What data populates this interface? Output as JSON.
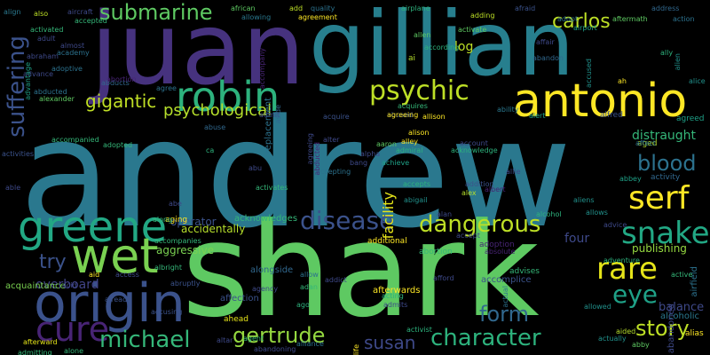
{
  "words": [
    {
      "text": "andrew",
      "color": "#2a788e"
    },
    {
      "text": "shark",
      "color": "#5ec962"
    },
    {
      "text": "juan",
      "color": "#46327e"
    },
    {
      "text": "gillian",
      "color": "#277f8e"
    },
    {
      "text": "antonio",
      "color": "#fde725"
    },
    {
      "text": "origin",
      "color": "#3b528b"
    },
    {
      "text": "greene",
      "color": "#22a884"
    },
    {
      "text": "robin",
      "color": "#2db27d"
    },
    {
      "text": "wet",
      "color": "#7ad151"
    },
    {
      "text": "psychic",
      "color": "#bddf26"
    },
    {
      "text": "submarine",
      "color": "#5ec962"
    },
    {
      "text": "suffering",
      "color": "#3b528b"
    },
    {
      "text": "disease",
      "color": "#3b528b"
    },
    {
      "text": "dangerous",
      "color": "#bddf26"
    },
    {
      "text": "serf",
      "color": "#fde725"
    },
    {
      "text": "snake",
      "color": "#22a884"
    },
    {
      "text": "blood",
      "color": "#2c728e"
    },
    {
      "text": "rare",
      "color": "#e5e419"
    },
    {
      "text": "eye",
      "color": "#1fa187"
    },
    {
      "text": "story",
      "color": "#bddf26"
    },
    {
      "text": "character",
      "color": "#2db27d"
    },
    {
      "text": "cure",
      "color": "#482475"
    },
    {
      "text": "michael",
      "color": "#35b779"
    },
    {
      "text": "gertrude",
      "color": "#95d840"
    },
    {
      "text": "form",
      "color": "#31688e"
    },
    {
      "text": "susan",
      "color": "#3e4989"
    },
    {
      "text": "try",
      "color": "#3b528b"
    },
    {
      "text": "carlos",
      "color": "#bddf26"
    },
    {
      "text": "gigantic",
      "color": "#c0df25"
    },
    {
      "text": "psychological",
      "color": "#b5de2b"
    },
    {
      "text": "distraught",
      "color": "#35b779"
    },
    {
      "text": "publishing",
      "color": "#95d840"
    },
    {
      "text": "four",
      "color": "#3e4989"
    },
    {
      "text": "overboard",
      "color": "#414487"
    },
    {
      "text": "balance",
      "color": "#3e4989"
    },
    {
      "text": "accidentally",
      "color": "#b5de2b"
    },
    {
      "text": "aggressive",
      "color": "#7ad151"
    },
    {
      "text": "operator",
      "color": "#3b528b"
    },
    {
      "text": "facility",
      "color": "#e5e419"
    },
    {
      "text": "alcoholic",
      "color": "#2a788e"
    },
    {
      "text": "replacement",
      "color": "#2c728e"
    },
    {
      "text": "abandoned",
      "color": "#3e4989"
    },
    {
      "text": "acknowledges",
      "color": "#35b779"
    },
    {
      "text": "affection",
      "color": "#3b528b"
    },
    {
      "text": "advises",
      "color": "#35b779"
    },
    {
      "text": "afterwards",
      "color": "#fde725"
    },
    {
      "text": "accomplice",
      "color": "#3b528b"
    },
    {
      "text": "alongside",
      "color": "#31688e"
    },
    {
      "text": "accompanies",
      "color": "#35b779"
    },
    {
      "text": "albright",
      "color": "#35b779"
    },
    {
      "text": "acquaintance",
      "color": "#7ad151"
    },
    {
      "text": "ahead",
      "color": "#e5e419"
    },
    {
      "text": "adoption",
      "color": "#482475"
    },
    {
      "text": "additional",
      "color": "#fde725"
    },
    {
      "text": "abortion",
      "color": "#35b779"
    },
    {
      "text": "aging",
      "color": "#fde725"
    },
    {
      "text": "abbey",
      "color": "#1fa187"
    },
    {
      "text": "alias",
      "color": "#fde725"
    },
    {
      "text": "actually",
      "color": "#21918c"
    },
    {
      "text": "aided",
      "color": "#b5de2b"
    },
    {
      "text": "airfield",
      "color": "#2c728e"
    },
    {
      "text": "active",
      "color": "#35b779"
    },
    {
      "text": "adventure",
      "color": "#2db27d"
    },
    {
      "text": "advice",
      "color": "#3e4989"
    },
    {
      "text": "allows",
      "color": "#21918c"
    },
    {
      "text": "aliens",
      "color": "#21918c"
    },
    {
      "text": "activity",
      "color": "#31688e"
    },
    {
      "text": "abby",
      "color": "#5ec962"
    },
    {
      "text": "aged",
      "color": "#b5de2b"
    },
    {
      "text": "affect",
      "color": "#2c728e"
    },
    {
      "text": "agreed",
      "color": "#1fa187"
    },
    {
      "text": "alert",
      "color": "#1fa187"
    },
    {
      "text": "alfred",
      "color": "#3b528b"
    },
    {
      "text": "alley",
      "color": "#fde725"
    },
    {
      "text": "alison",
      "color": "#fde725"
    },
    {
      "text": "aaron",
      "color": "#5ec962"
    },
    {
      "text": "achieve",
      "color": "#1fa187"
    },
    {
      "text": "admiral",
      "color": "#2db27d"
    },
    {
      "text": "accepts",
      "color": "#2db27d"
    },
    {
      "text": "abigail",
      "color": "#21918c"
    },
    {
      "text": "addition",
      "color": "#3b528b"
    },
    {
      "text": "alex",
      "color": "#b5de2b"
    },
    {
      "text": "albert",
      "color": "#482475"
    },
    {
      "text": "alan",
      "color": "#3e4989"
    },
    {
      "text": "alcohol",
      "color": "#2db27d"
    },
    {
      "text": "account",
      "color": "#3e4989"
    },
    {
      "text": "acknowledge",
      "color": "#2db27d"
    },
    {
      "text": "abuse",
      "color": "#31688e"
    },
    {
      "text": "abused",
      "color": "#3b528b"
    },
    {
      "text": "acquire",
      "color": "#3b528b"
    },
    {
      "text": "agreeing",
      "color": "#fde725"
    },
    {
      "text": "allison",
      "color": "#fde725"
    },
    {
      "text": "ability",
      "color": "#2a788e"
    },
    {
      "text": "acquires",
      "color": "#35b779"
    },
    {
      "text": "log",
      "color": "#bddf26"
    },
    {
      "text": "ai",
      "color": "#b5de2b"
    },
    {
      "text": "according",
      "color": "#2db27d"
    },
    {
      "text": "allen",
      "color": "#5ec962"
    },
    {
      "text": "activate",
      "color": "#5ec962"
    },
    {
      "text": "airplane",
      "color": "#2db27d"
    },
    {
      "text": "agreement",
      "color": "#fde725"
    },
    {
      "text": "add",
      "color": "#bddf26"
    },
    {
      "text": "adding",
      "color": "#bddf26"
    },
    {
      "text": "afraid",
      "color": "#3b528b"
    },
    {
      "text": "adopt",
      "color": "#2c728e"
    },
    {
      "text": "aftermath",
      "color": "#5ec962"
    },
    {
      "text": "address",
      "color": "#31688e"
    },
    {
      "text": "action",
      "color": "#2c728e"
    },
    {
      "text": "accused",
      "color": "#21918c"
    },
    {
      "text": "abandon",
      "color": "#31688e"
    },
    {
      "text": "affair",
      "color": "#3e4989"
    },
    {
      "text": "airport",
      "color": "#1fa187"
    },
    {
      "text": "ah",
      "color": "#fde725"
    },
    {
      "text": "ally",
      "color": "#2db27d"
    },
    {
      "text": "alice",
      "color": "#21918c"
    },
    {
      "text": "alien",
      "color": "#21918c"
    },
    {
      "text": "align",
      "color": "#2a788e"
    },
    {
      "text": "accepted",
      "color": "#35b779"
    },
    {
      "text": "african",
      "color": "#5ec962"
    },
    {
      "text": "allowing",
      "color": "#2a788e"
    },
    {
      "text": "accompanied",
      "color": "#35b779"
    },
    {
      "text": "adopted",
      "color": "#35b779"
    },
    {
      "text": "almost",
      "color": "#3e4989"
    },
    {
      "text": "academy",
      "color": "#2c728e"
    },
    {
      "text": "advance",
      "color": "#3e4989"
    },
    {
      "text": "adult",
      "color": "#3e4989"
    },
    {
      "text": "aircraft",
      "color": "#3e4989"
    },
    {
      "text": "also",
      "color": "#bddf26"
    },
    {
      "text": "activated",
      "color": "#35b779"
    },
    {
      "text": "abraham",
      "color": "#3e4989"
    },
    {
      "text": "advantage",
      "color": "#1fa187"
    },
    {
      "text": "adoptive",
      "color": "#2c728e"
    },
    {
      "text": "abducts",
      "color": "#31688e"
    },
    {
      "text": "abducted",
      "color": "#2c728e"
    },
    {
      "text": "alexander",
      "color": "#5ec962"
    },
    {
      "text": "activities",
      "color": "#3b528b"
    },
    {
      "text": "accompany",
      "color": "#482475"
    },
    {
      "text": "agree",
      "color": "#2c728e"
    },
    {
      "text": "admit",
      "color": "#3e4989"
    },
    {
      "text": "alter",
      "color": "#3e4989"
    },
    {
      "text": "aside",
      "color": "#31688e"
    },
    {
      "text": "abu",
      "color": "#3e4989"
    },
    {
      "text": "activates",
      "color": "#35b779"
    },
    {
      "text": "abe",
      "color": "#3e4989"
    },
    {
      "text": "along",
      "color": "#35b779"
    },
    {
      "text": "able",
      "color": "#3e4989"
    },
    {
      "text": "aid",
      "color": "#fde725"
    },
    {
      "text": "acid",
      "color": "#3e4989"
    },
    {
      "text": "already",
      "color": "#3b528b"
    },
    {
      "text": "access",
      "color": "#3e4989"
    },
    {
      "text": "abruptly",
      "color": "#3b528b"
    },
    {
      "text": "allow",
      "color": "#2c728e"
    },
    {
      "text": "adan",
      "color": "#35b779"
    },
    {
      "text": "addict",
      "color": "#3e4989"
    },
    {
      "text": "acting",
      "color": "#2db27d"
    },
    {
      "text": "admits",
      "color": "#3e4989"
    },
    {
      "text": "agency",
      "color": "#3e4989"
    },
    {
      "text": "accusing",
      "color": "#3b528b"
    },
    {
      "text": "afterward",
      "color": "#e5e419"
    },
    {
      "text": "admitting",
      "color": "#35b779"
    },
    {
      "text": "alone",
      "color": "#35b779"
    },
    {
      "text": "abandoning",
      "color": "#3e4989"
    },
    {
      "text": "alliance",
      "color": "#2c728e"
    },
    {
      "text": "activist",
      "color": "#2db27d"
    },
    {
      "text": "afterlife",
      "color": "#fde725"
    },
    {
      "text": "agent",
      "color": "#35b779"
    },
    {
      "text": "altar",
      "color": "#3e4989"
    },
    {
      "text": "ago",
      "color": "#2db27d"
    },
    {
      "text": "absolute",
      "color": "#482475"
    },
    {
      "text": "afford",
      "color": "#3e4989"
    },
    {
      "text": "actual",
      "color": "#2c728e"
    },
    {
      "text": "allowed",
      "color": "#21918c"
    },
    {
      "text": "quality",
      "color": "#2c728e"
    },
    {
      "text": "ca",
      "color": "#2db27d"
    },
    {
      "text": "bang",
      "color": "#3e4989"
    },
    {
      "text": "agreeing",
      "color": "#3e4989"
    },
    {
      "text": "accepting",
      "color": "#2c728e"
    },
    {
      "text": "alpha",
      "color": "#3e4989"
    },
    {
      "text": "accept",
      "color": "#3e4989"
    },
    {
      "text": "abortion",
      "color": "#482475"
    },
    {
      "text": "abducted",
      "color": "#482475"
    },
    {
      "text": "allie",
      "color": "#3e4989"
    },
    {
      "text": "adrian",
      "color": "#3e4989"
    }
  ]
}
